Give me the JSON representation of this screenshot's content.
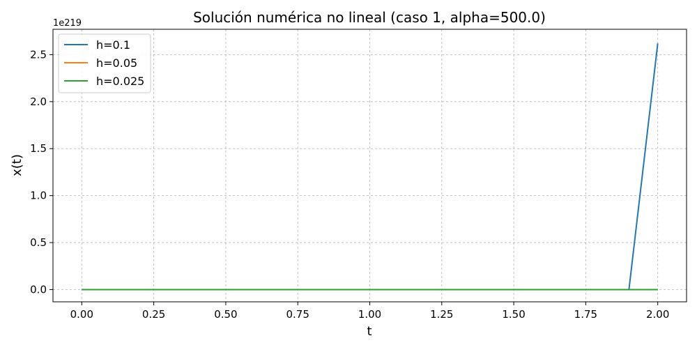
{
  "chart_data": {
    "type": "line",
    "title": "Solución numérica no lineal (caso 1, alpha=500.0)",
    "xlabel": "t",
    "ylabel": "x(t)",
    "y_offset_label": "1e219",
    "y_scale_factor": 1e+219,
    "xlim": [
      -0.1,
      2.1
    ],
    "ylim": [
      -0.13,
      2.77
    ],
    "xticks": [
      0.0,
      0.25,
      0.5,
      0.75,
      1.0,
      1.25,
      1.5,
      1.75,
      2.0
    ],
    "xtick_labels": [
      "0.00",
      "0.25",
      "0.50",
      "0.75",
      "1.00",
      "1.25",
      "1.50",
      "1.75",
      "2.00"
    ],
    "yticks": [
      0.0,
      0.5,
      1.0,
      1.5,
      2.0,
      2.5
    ],
    "ytick_labels": [
      "0.0",
      "0.5",
      "1.0",
      "1.5",
      "2.0",
      "2.5"
    ],
    "grid": true,
    "legend_position": "top-left",
    "series": [
      {
        "name": "h=0.1",
        "color": "#1f77b4",
        "x": [
          0.0,
          0.1,
          0.2,
          0.3,
          0.4,
          0.5,
          0.6,
          0.7,
          0.8,
          0.9,
          1.0,
          1.1,
          1.2,
          1.3,
          1.4,
          1.5,
          1.6,
          1.7,
          1.8,
          1.9,
          2.0
        ],
        "y": [
          0,
          0,
          0,
          0,
          0,
          0,
          0,
          0,
          0,
          0,
          0,
          0,
          0,
          0,
          0,
          0,
          0,
          0,
          0,
          0,
          2.62
        ]
      },
      {
        "name": "h=0.05",
        "color": "#ff7f0e",
        "x": [
          0.0,
          0.25,
          0.5,
          0.75,
          1.0,
          1.25,
          1.5,
          1.75,
          2.0
        ],
        "y": [
          0,
          0,
          0,
          0,
          0,
          0,
          0,
          0,
          0
        ]
      },
      {
        "name": "h=0.025",
        "color": "#2ca02c",
        "x": [
          0.0,
          0.25,
          0.5,
          0.75,
          1.0,
          1.25,
          1.5,
          1.75,
          2.0
        ],
        "y": [
          0,
          0,
          0,
          0,
          0,
          0,
          0,
          0,
          0
        ]
      }
    ]
  }
}
